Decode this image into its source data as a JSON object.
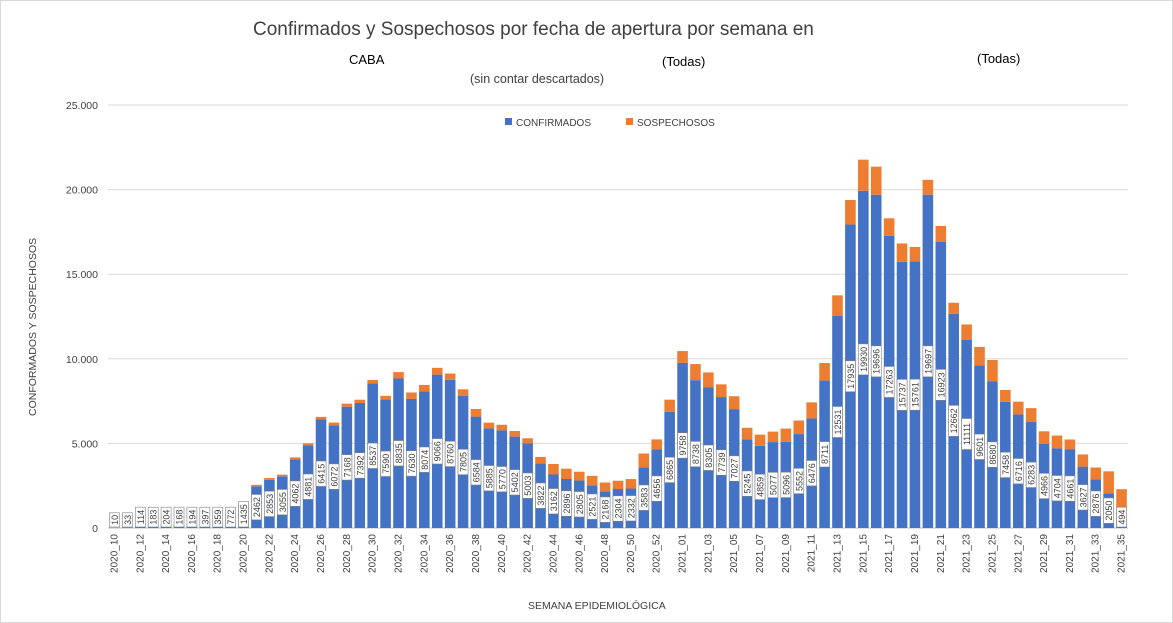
{
  "title": "Confirmados y Sospechosos por fecha de apertura por semana en",
  "filters": {
    "region": "CABA",
    "filter_1": "(Todas)",
    "filter_2": "(Todas)"
  },
  "subtitle": "(sin contar descartados)",
  "colors": {
    "confirmados": "#4472c4",
    "sospechosos": "#ed7d31"
  },
  "chart_data": {
    "type": "bar",
    "stacked": true,
    "title": "Confirmados y Sospechosos por fecha de apertura por semana en",
    "xlabel": "SEMANA  EPIDEMIOLÓGICA",
    "ylabel": "CONFORMADOS  Y SOSPECHOSOS",
    "ylim": [
      0,
      25000
    ],
    "y_ticks": [
      "0",
      "5.000",
      "10.000",
      "15.000",
      "20.000",
      "25.000"
    ],
    "legend_position": "top-center",
    "categories": [
      "2020_10",
      "2020_11",
      "2020_12",
      "2020_13",
      "2020_14",
      "2020_15",
      "2020_16",
      "2020_17",
      "2020_18",
      "2020_19",
      "2020_20",
      "2020_21",
      "2020_22",
      "2020_23",
      "2020_24",
      "2020_25",
      "2020_26",
      "2020_27",
      "2020_28",
      "2020_29",
      "2020_30",
      "2020_31",
      "2020_32",
      "2020_33",
      "2020_34",
      "2020_35",
      "2020_36",
      "2020_37",
      "2020_38",
      "2020_39",
      "2020_40",
      "2020_41",
      "2020_42",
      "2020_43",
      "2020_44",
      "2020_45",
      "2020_46",
      "2020_47",
      "2020_48",
      "2020_49",
      "2020_50",
      "2020_51",
      "2020_52",
      "2020_53",
      "2021_01",
      "2021_02",
      "2021_03",
      "2021_04",
      "2021_05",
      "2021_06",
      "2021_07",
      "2021_08",
      "2021_09",
      "2021_10",
      "2021_11",
      "2021_12",
      "2021_13",
      "2021_14",
      "2021_15",
      "2021_16",
      "2021_17",
      "2021_18",
      "2021_19",
      "2021_20",
      "2021_21",
      "2021_22",
      "2021_23",
      "2021_24",
      "2021_25",
      "2021_26",
      "2021_27",
      "2021_28",
      "2021_29",
      "2021_30",
      "2021_31",
      "2021_32",
      "2021_33",
      "2021_34",
      "2021_35"
    ],
    "tick_labels": [
      "2020_10",
      "2020_12",
      "2020_14",
      "2020_16",
      "2020_18",
      "2020_20",
      "2020_22",
      "2020_24",
      "2020_26",
      "2020_28",
      "2020_30",
      "2020_32",
      "2020_34",
      "2020_36",
      "2020_38",
      "2020_40",
      "2020_42",
      "2020_44",
      "2020_46",
      "2020_48",
      "2020_50",
      "2020_52",
      "2021_01",
      "2021_03",
      "2021_05",
      "2021_07",
      "2021_09",
      "2021_11",
      "2021_13",
      "2021_15",
      "2021_17",
      "2021_19",
      "2021_21",
      "2021_23",
      "2021_25",
      "2021_27",
      "2021_29",
      "2021_31",
      "2021_33",
      "2021_35"
    ],
    "series": [
      {
        "name": "CONFIRMADOS",
        "values": [
          10,
          33,
          114,
          183,
          204,
          168,
          194,
          397,
          359,
          772,
          1435,
          2462,
          2853,
          3055,
          4062,
          4881,
          6415,
          6072,
          7168,
          7392,
          8537,
          7590,
          8835,
          7630,
          8074,
          9066,
          8760,
          7805,
          6584,
          5885,
          5770,
          5402,
          5003,
          3822,
          3162,
          2896,
          2805,
          2521,
          2168,
          2304,
          2332,
          3583,
          4656,
          6865,
          9758,
          8738,
          8305,
          7739,
          7027,
          5245,
          4859,
          5077,
          5096,
          5552,
          6476,
          8711,
          12531,
          17935,
          19930,
          19696,
          17263,
          15737,
          15761,
          19697,
          16923,
          12662,
          11111,
          9601,
          8680,
          7458,
          6716,
          6283,
          4966,
          4704,
          4661,
          3627,
          2876,
          2050,
          494
        ]
      },
      {
        "name": "SOSPECHOSOS",
        "values": [
          5,
          5,
          10,
          15,
          15,
          15,
          20,
          25,
          30,
          40,
          60,
          90,
          100,
          100,
          110,
          120,
          150,
          160,
          180,
          190,
          210,
          220,
          380,
          380,
          380,
          400,
          370,
          390,
          450,
          340,
          330,
          330,
          300,
          380,
          620,
          610,
          520,
          560,
          520,
          490,
          560,
          820,
          580,
          720,
          700,
          950,
          890,
          750,
          760,
          680,
          660,
          620,
          780,
          800,
          950,
          1040,
          1220,
          1450,
          1840,
          1660,
          1040,
          1080,
          850,
          880,
          930,
          650,
          920,
          1100,
          1250,
          700,
          750,
          800,
          750,
          760,
          570,
          720,
          700,
          1300,
          1800
        ]
      }
    ]
  },
  "legend": {
    "confirmados": "CONFIRMADOS",
    "sospechosos": "SOSPECHOSOS"
  }
}
